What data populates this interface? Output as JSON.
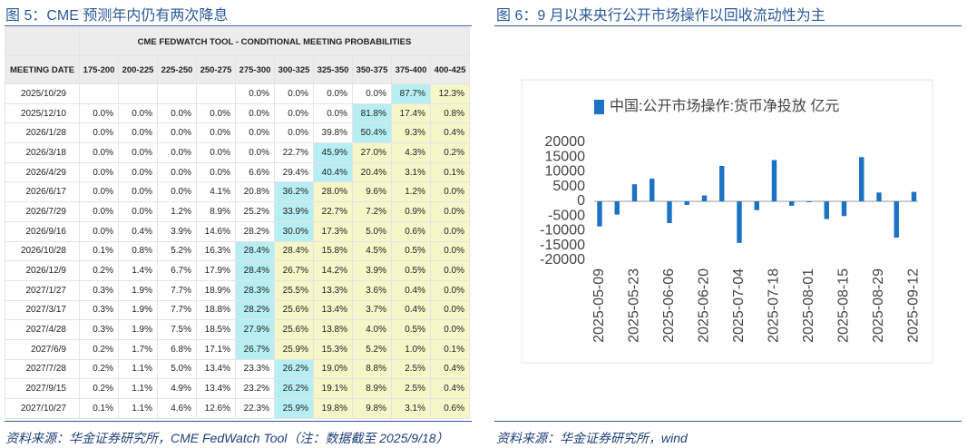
{
  "figure5": {
    "caption": "图 5：CME 预测年内仍有两次降息",
    "table": {
      "title": "CME FEDWATCH TOOL - CONDITIONAL MEETING PROBABILITIES",
      "header": [
        "MEETING DATE",
        "175-200",
        "200-225",
        "225-250",
        "250-275",
        "275-300",
        "300-325",
        "325-350",
        "350-375",
        "375-400",
        "400-425"
      ],
      "rows": [
        [
          "2025/10/29",
          null,
          null,
          null,
          null,
          "0.0%",
          "0.0%",
          "0.0%",
          "0.0%",
          "87.7%",
          "12.3%"
        ],
        [
          "2025/12/10",
          "0.0%",
          "0.0%",
          "0.0%",
          "0.0%",
          "0.0%",
          "0.0%",
          "0.0%",
          "81.8%",
          "17.4%",
          "0.8%"
        ],
        [
          "2026/1/28",
          "0.0%",
          "0.0%",
          "0.0%",
          "0.0%",
          "0.0%",
          "0.0%",
          "39.8%",
          "50.4%",
          "9.3%",
          "0.4%"
        ],
        [
          "2026/3/18",
          "0.0%",
          "0.0%",
          "0.0%",
          "0.0%",
          "0.0%",
          "22.7%",
          "45.9%",
          "27.0%",
          "4.3%",
          "0.2%"
        ],
        [
          "2026/4/29",
          "0.0%",
          "0.0%",
          "0.0%",
          "0.0%",
          "6.6%",
          "29.4%",
          "40.4%",
          "20.4%",
          "3.1%",
          "0.1%"
        ],
        [
          "2026/6/17",
          "0.0%",
          "0.0%",
          "0.0%",
          "4.1%",
          "20.8%",
          "36.2%",
          "28.0%",
          "9.6%",
          "1.2%",
          "0.0%"
        ],
        [
          "2026/7/29",
          "0.0%",
          "0.0%",
          "1.2%",
          "8.9%",
          "25.2%",
          "33.9%",
          "22.7%",
          "7.2%",
          "0.9%",
          "0.0%"
        ],
        [
          "2026/9/16",
          "0.0%",
          "0.4%",
          "3.9%",
          "14.6%",
          "28.2%",
          "30.0%",
          "17.3%",
          "5.0%",
          "0.6%",
          "0.0%"
        ],
        [
          "2026/10/28",
          "0.1%",
          "0.8%",
          "5.2%",
          "16.3%",
          "28.4%",
          "28.4%",
          "15.8%",
          "4.5%",
          "0.5%",
          "0.0%"
        ],
        [
          "2026/12/9",
          "0.2%",
          "1.4%",
          "6.7%",
          "17.9%",
          "28.4%",
          "26.7%",
          "14.2%",
          "3.9%",
          "0.5%",
          "0.0%"
        ],
        [
          "2027/1/27",
          "0.3%",
          "1.9%",
          "7.7%",
          "18.9%",
          "28.3%",
          "25.5%",
          "13.3%",
          "3.6%",
          "0.4%",
          "0.0%"
        ],
        [
          "2027/3/17",
          "0.3%",
          "1.9%",
          "7.7%",
          "18.8%",
          "28.2%",
          "25.6%",
          "13.4%",
          "3.7%",
          "0.4%",
          "0.0%"
        ],
        [
          "2027/4/28",
          "0.3%",
          "1.9%",
          "7.5%",
          "18.5%",
          "27.9%",
          "25.6%",
          "13.8%",
          "4.0%",
          "0.5%",
          "0.0%"
        ],
        [
          "2027/6/9",
          "0.2%",
          "1.7%",
          "6.8%",
          "17.1%",
          "26.7%",
          "25.9%",
          "15.3%",
          "5.2%",
          "1.0%",
          "0.1%"
        ],
        [
          "2027/7/28",
          "0.2%",
          "1.1%",
          "5.0%",
          "13.4%",
          "23.3%",
          "26.2%",
          "19.0%",
          "8.8%",
          "2.5%",
          "0.4%"
        ],
        [
          "2027/9/15",
          "0.2%",
          "1.1%",
          "4.9%",
          "13.4%",
          "23.2%",
          "26.2%",
          "19.1%",
          "8.9%",
          "2.5%",
          "0.4%"
        ],
        [
          "2027/10/27",
          "0.1%",
          "1.1%",
          "4.6%",
          "12.6%",
          "22.3%",
          "25.9%",
          "19.8%",
          "9.8%",
          "3.1%",
          "0.6%"
        ]
      ]
    },
    "source": "资料来源：华金证券研究所，CME FedWatch Tool（注：数据截至 2025/9/18）"
  },
  "figure6": {
    "caption": "图 6：9 月以来央行公开市场操作以回收流动性为主",
    "source": "资料来源：华金证券研究所，wind"
  },
  "chart_data": {
    "type": "bar",
    "series_name": "中国:公开市场操作:货币净投放 亿元",
    "color": "#1c72c4",
    "categories": [
      "2025-05-09",
      null,
      "2025-05-23",
      null,
      "2025-06-06",
      null,
      "2025-06-20",
      null,
      "2025-07-04",
      null,
      "2025-07-18",
      null,
      "2025-08-01",
      null,
      "2025-08-15",
      null,
      "2025-08-29",
      null,
      "2025-09-12"
    ],
    "values": [
      -8500,
      -4500,
      5800,
      7700,
      -7400,
      -1200,
      2000,
      12000,
      -14100,
      -3000,
      14000,
      -1500,
      -300,
      -6000,
      -5000,
      15000,
      3000,
      -12300,
      3200
    ],
    "ylim": [
      -20000,
      20000
    ],
    "yticks": [
      20000,
      15000,
      10000,
      5000,
      0,
      -5000,
      -10000,
      -15000,
      -20000
    ]
  }
}
